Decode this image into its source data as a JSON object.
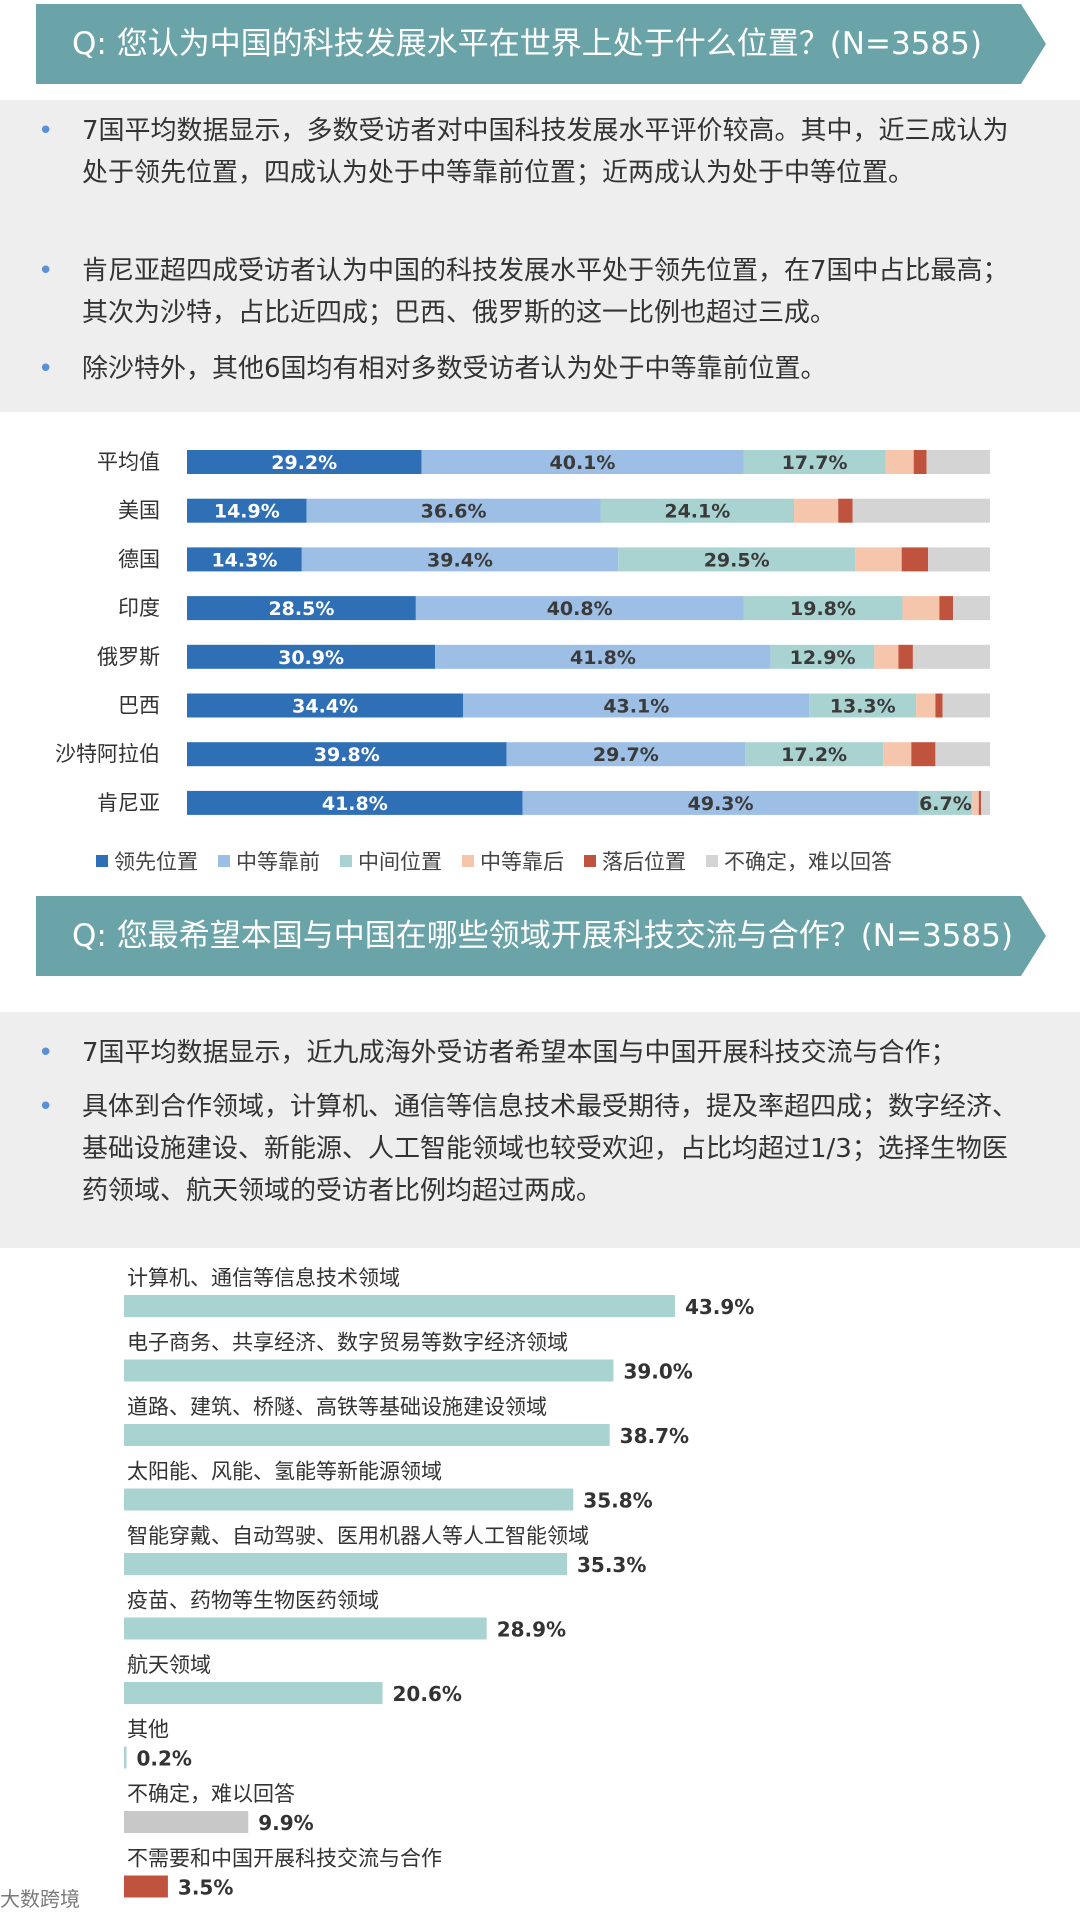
{
  "q1": {
    "title": "Q: 您认为中国的科技发展水平在世界上处于什么位置？(N=3585)",
    "notes": [
      "7国平均数据显示，多数受访者对中国科技发展水平评价较高。其中，近三成认为处于领先位置，四成认为处于中等靠前位置；近两成认为处于中等位置。",
      "肯尼亚超四成受访者认为中国的科技发展水平处于领先位置，在7国中占比最高；其次为沙特，占比近四成；巴西、俄罗斯的这一比例也超过三成。",
      "除沙特外，其他6国均有相对多数受访者认为处于中等靠前位置。"
    ]
  },
  "q2": {
    "title": "Q: 您最希望本国与中国在哪些领域开展科技交流与合作？(N=3585)",
    "notes": [
      "7国平均数据显示，近九成海外受访者希望本国与中国开展科技交流与合作；",
      "具体到合作领域，计算机、通信等信息技术最受期待，提及率超四成；数字经济、基础设施建设、新能源、人工智能领域也较受欢迎，占比均超过1/3；选择生物医药领域、航天领域的受访者比例均超过两成。"
    ]
  },
  "colors": {
    "banner": "#6aa3a8",
    "bullet": "#5b8fd6",
    "series": [
      "#2f6fb5",
      "#9dbfe6",
      "#a9d3d0",
      "#f5c5ac",
      "#c0533e",
      "#d4d4d4"
    ],
    "bar_teal": "#a9d3d0",
    "bar_gray": "#c8c8c8",
    "bar_red": "#c0533e"
  },
  "chart_data": [
    {
      "type": "bar",
      "orientation": "horizontal-stacked",
      "categories": [
        "平均值",
        "美国",
        "德国",
        "印度",
        "俄罗斯",
        "巴西",
        "沙特阿拉伯",
        "肯尼亚"
      ],
      "series": [
        {
          "name": "领先位置",
          "values": [
            29.2,
            14.9,
            14.3,
            28.5,
            30.9,
            34.4,
            39.8,
            41.8
          ]
        },
        {
          "name": "中等靠前",
          "values": [
            40.1,
            36.6,
            39.4,
            40.8,
            41.8,
            43.1,
            29.7,
            49.3
          ]
        },
        {
          "name": "中间位置",
          "values": [
            17.7,
            24.1,
            29.5,
            19.8,
            12.9,
            13.3,
            17.2,
            6.7
          ]
        },
        {
          "name": "中等靠后",
          "values": [
            3.5,
            5.5,
            5.8,
            4.6,
            3.0,
            2.4,
            3.5,
            0.8
          ]
        },
        {
          "name": "落后位置",
          "values": [
            1.6,
            1.8,
            3.3,
            1.7,
            1.8,
            0.9,
            3.0,
            0.3
          ]
        },
        {
          "name": "不确定，难以回答",
          "values": [
            7.9,
            17.1,
            7.7,
            4.6,
            9.6,
            5.9,
            6.8,
            1.1
          ]
        }
      ],
      "labeled_series": [
        0,
        1,
        2
      ],
      "xlim": [
        0,
        100
      ],
      "legend": "bottom"
    },
    {
      "type": "bar",
      "orientation": "horizontal",
      "categories": [
        "计算机、通信等信息技术领域",
        "电子商务、共享经济、数字贸易等数字经济领域",
        "道路、建筑、桥隧、高铁等基础设施建设领域",
        "太阳能、风能、氢能等新能源领域",
        "智能穿戴、自动驾驶、医用机器人等人工智能领域",
        "疫苗、药物等生物医药领域",
        "航天领域",
        "其他",
        "不确定，难以回答",
        "不需要和中国开展科技交流与合作"
      ],
      "values": [
        43.9,
        39.0,
        38.7,
        35.8,
        35.3,
        28.9,
        20.6,
        0.2,
        9.9,
        3.5
      ],
      "value_labels": [
        "43.9%",
        "39.0%",
        "38.7%",
        "35.8%",
        "35.3%",
        "28.9%",
        "20.6%",
        "0.2%",
        "9.9%",
        "3.5%"
      ],
      "bar_colors": [
        "teal",
        "teal",
        "teal",
        "teal",
        "teal",
        "teal",
        "teal",
        "teal",
        "gray",
        "red"
      ]
    }
  ],
  "watermark": "大数跨境"
}
